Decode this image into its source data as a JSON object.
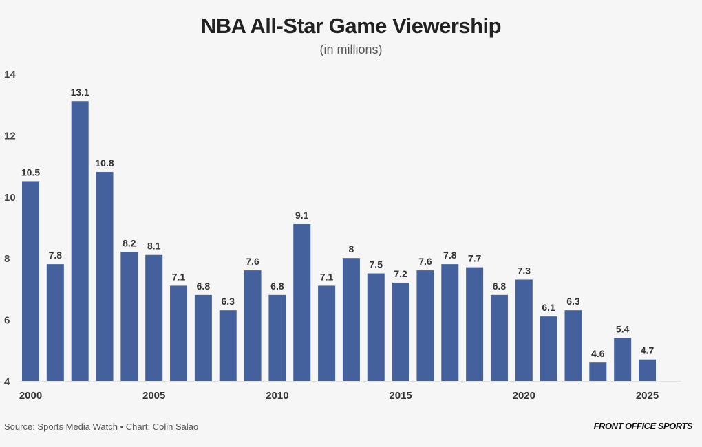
{
  "chart_data": {
    "type": "bar",
    "title": "NBA All-Star Game Viewership",
    "subtitle": "(in millions)",
    "categories": [
      2000,
      2001,
      2002,
      2003,
      2004,
      2005,
      2006,
      2007,
      2008,
      2009,
      2010,
      2011,
      2012,
      2013,
      2014,
      2015,
      2016,
      2017,
      2018,
      2019,
      2020,
      2021,
      2022,
      2023,
      2024,
      2025
    ],
    "values": [
      10.5,
      7.8,
      13.1,
      10.8,
      8.2,
      8.1,
      7.1,
      6.8,
      6.3,
      7.6,
      6.8,
      9.1,
      7.1,
      8,
      7.5,
      7.2,
      7.6,
      7.8,
      7.7,
      6.8,
      7.3,
      6.1,
      6.3,
      4.6,
      5.4,
      4.7
    ],
    "xticks": [
      "2000",
      "2005",
      "2010",
      "2015",
      "2020",
      "2025"
    ],
    "yticks": [
      "4",
      "6",
      "8",
      "10",
      "12",
      "14"
    ],
    "ylim": [
      4,
      14
    ],
    "xlabel": "",
    "ylabel": "",
    "grid": false,
    "bar_color": "#44619e"
  },
  "footer": {
    "source": "Source: Sports Media Watch • Chart: Colin Salao",
    "logo": "FRONT OFFICE SPORTS"
  }
}
